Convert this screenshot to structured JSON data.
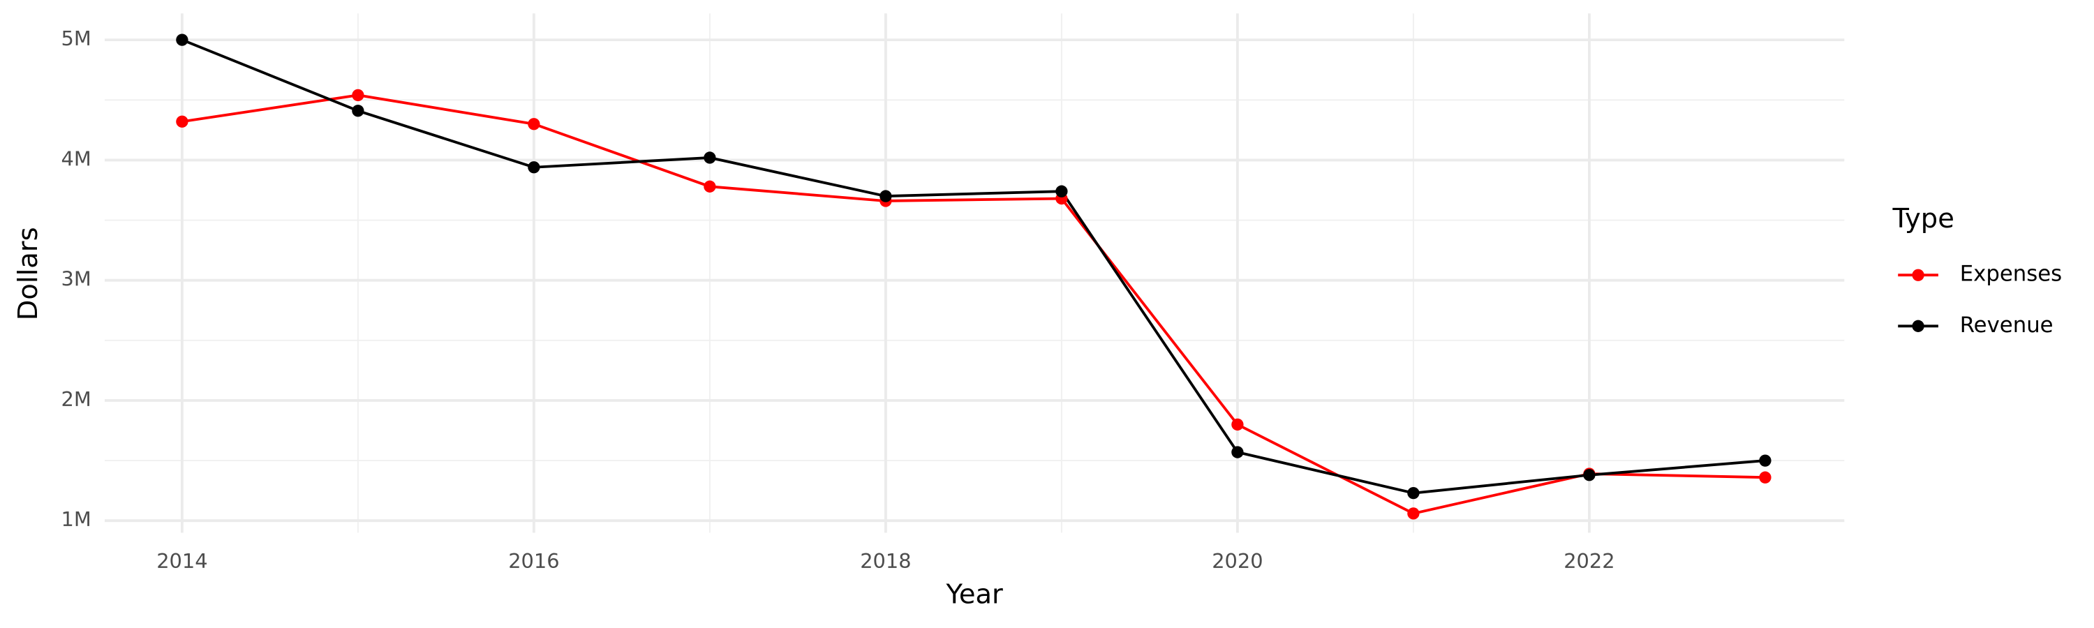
{
  "chart_data": {
    "type": "line",
    "x_label": "Year",
    "y_label": "Dollars",
    "legend_title": "Type",
    "legend_position": "right",
    "grid": true,
    "x": [
      2014,
      2015,
      2016,
      2017,
      2018,
      2019,
      2020,
      2021,
      2022,
      2023
    ],
    "series": [
      {
        "name": "Expenses",
        "color": "#ff0000",
        "values": [
          4320000,
          4540000,
          4300000,
          3780000,
          3660000,
          3680000,
          1800000,
          1060000,
          1390000,
          1360000
        ]
      },
      {
        "name": "Revenue",
        "color": "#000000",
        "values": [
          5000000,
          4410000,
          3940000,
          4020000,
          3700000,
          3740000,
          1570000,
          1230000,
          1380000,
          1500000
        ]
      }
    ],
    "xlim": [
      2013.56,
      2023.45
    ],
    "xticks": [
      2014,
      2016,
      2018,
      2020,
      2022
    ],
    "ylim": [
      900000,
      5220000
    ],
    "yticks": [
      {
        "value": 1000000,
        "label": "1M"
      },
      {
        "value": 2000000,
        "label": "2M"
      },
      {
        "value": 3000000,
        "label": "3M"
      },
      {
        "value": 4000000,
        "label": "4M"
      },
      {
        "value": 5000000,
        "label": "5M"
      }
    ]
  }
}
